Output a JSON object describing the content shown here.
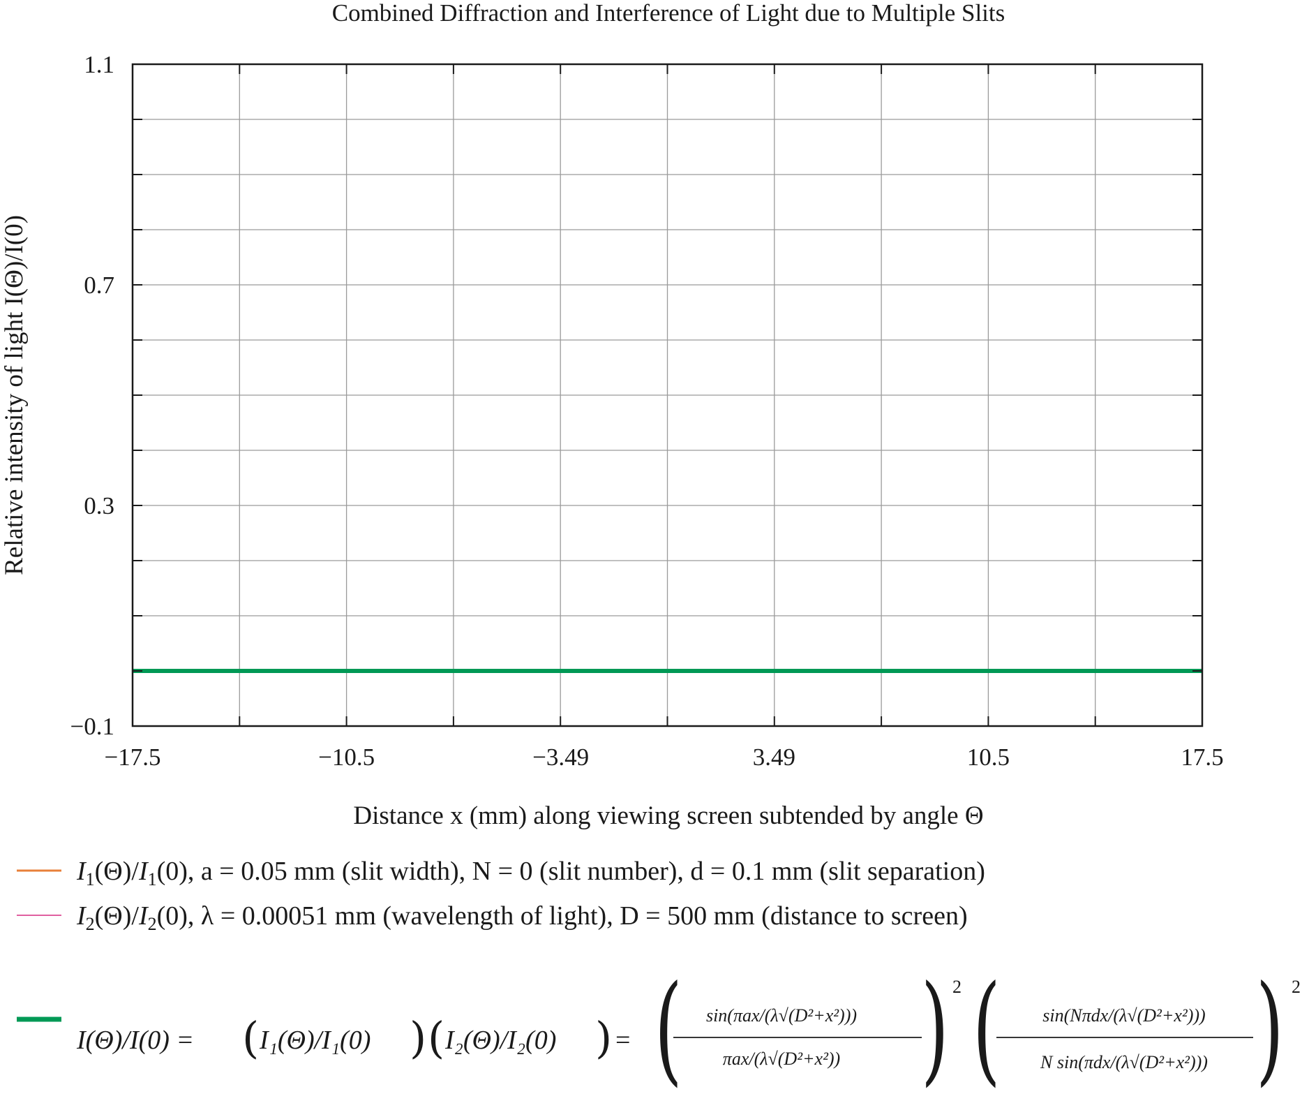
{
  "chart_data": {
    "type": "line",
    "title": "Combined Diffraction and Interference of Light due to Multiple Slits",
    "xlabel": "Distance x (mm) along viewing screen subtended by angle Θ",
    "ylabel": "Relative intensity of light I(Θ)/I(0)",
    "xlim": [
      -17.5,
      17.5
    ],
    "ylim": [
      -0.1,
      1.1
    ],
    "x_ticks": [
      "−17.5",
      "−10.5",
      "−3.49",
      "3.49",
      "10.5",
      "17.5"
    ],
    "x_tick_values": [
      -17.5,
      -10.5,
      -3.49,
      3.49,
      10.5,
      17.5
    ],
    "y_ticks": [
      "−0.1",
      "0.3",
      "0.7",
      "1.1"
    ],
    "y_tick_values": [
      -0.1,
      0.3,
      0.7,
      1.1
    ],
    "grid": true,
    "x_grid_step": 3.5,
    "y_grid_step": 0.1,
    "series": [
      {
        "name": "I1(Θ)/I1(0), a = 0.05 mm (slit width), N = 0 (slit number), d = 0.1 mm (slit separation)",
        "color": "#e8803a",
        "x": [],
        "y": []
      },
      {
        "name": "I2(Θ)/I2(0), λ = 0.00051 mm (wavelength of light), D = 500 mm (distance to screen)",
        "color": "#e060a0",
        "x": [],
        "y": []
      },
      {
        "name": "I(Θ)/I(0) = (I1(Θ)/I1(0))(I2(Θ)/I2(0))",
        "color": "#009955",
        "x": [
          -17.5,
          17.5
        ],
        "y": [
          0.0,
          0.0
        ]
      }
    ]
  },
  "legend": {
    "items": [
      {
        "prefix": "I",
        "sub": "1",
        "body": "(Θ)/",
        "prefix2": "I",
        "sub2": "1",
        "rest": "(0), a = 0.05 mm (slit width), N = 0 (slit number), d = 0.1 mm (slit separation)"
      },
      {
        "prefix": "I",
        "sub": "2",
        "body": "(Θ)/",
        "prefix2": "I",
        "sub2": "2",
        "rest": "(0), λ = 0.00051 mm (wavelength of light), D = 500 mm (distance to screen)"
      }
    ],
    "equation": {
      "lhs": "I(Θ)/I(0) =",
      "f1": "I₁(Θ)/I₁(0)",
      "f2": "I₂(Θ)/I₂(0)",
      "eq": "=",
      "num1": "sin(πax/(λ√(D²+x²)))",
      "den1": "πax/(λ√(D²+x²))",
      "num2": "sin(Nπdx/(λ√(D²+x²)))",
      "den2": "N sin(πdx/(λ√(D²+x²)))",
      "exp": "2"
    }
  }
}
